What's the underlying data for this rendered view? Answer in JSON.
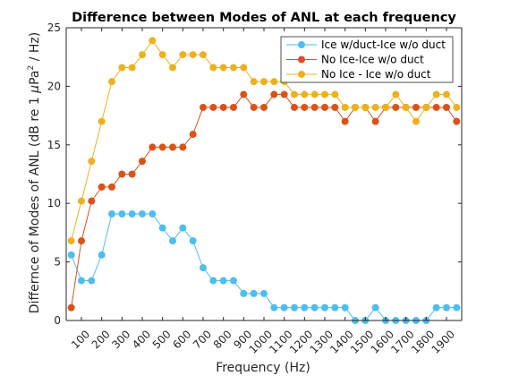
{
  "chart_data": {
    "type": "line",
    "title": "Difference between Modes of ANL at each frequency",
    "xlabel": "Frequency (Hz)",
    "ylabel_parts": [
      "Differnce of Modes of ANL (dB re 1 ",
      "μ",
      "Pa",
      "2",
      " / Hz)"
    ],
    "ylim": [
      0,
      25
    ],
    "xlim": [
      25,
      1975
    ],
    "y_ticks": [
      0,
      5,
      10,
      15,
      20,
      25
    ],
    "x_ticks": [
      100,
      200,
      300,
      400,
      500,
      600,
      700,
      800,
      900,
      1000,
      1100,
      1200,
      1300,
      1400,
      1500,
      1600,
      1700,
      1800,
      1900
    ],
    "grid": false,
    "legend_position": "top-right",
    "x": [
      50,
      100,
      150,
      200,
      250,
      300,
      350,
      400,
      450,
      500,
      550,
      600,
      650,
      700,
      750,
      800,
      850,
      900,
      950,
      1000,
      1050,
      1100,
      1150,
      1200,
      1250,
      1300,
      1350,
      1400,
      1450,
      1500,
      1550,
      1600,
      1650,
      1700,
      1750,
      1800,
      1850,
      1900,
      1950
    ],
    "series": [
      {
        "name": "Ice w/duct-Ice w/o duct",
        "color": "#4DBEEE",
        "values": [
          5.6,
          3.4,
          3.4,
          5.6,
          9.1,
          9.1,
          9.1,
          9.1,
          9.1,
          7.9,
          6.8,
          7.9,
          6.8,
          4.5,
          3.4,
          3.4,
          3.4,
          2.3,
          2.3,
          2.3,
          1.1,
          1.1,
          1.1,
          1.1,
          1.1,
          1.1,
          1.1,
          1.1,
          0,
          0,
          1.1,
          0,
          0,
          0,
          0,
          0,
          1.1,
          1.1,
          1.1
        ]
      },
      {
        "name": "No Ice-Ice w/o duct",
        "color": "#D95319",
        "values": [
          1.1,
          6.8,
          10.2,
          11.4,
          11.4,
          12.5,
          12.5,
          13.6,
          14.8,
          14.8,
          14.8,
          14.8,
          15.9,
          18.2,
          18.2,
          18.2,
          18.2,
          19.3,
          18.2,
          18.2,
          19.3,
          19.3,
          18.2,
          18.2,
          18.2,
          18.2,
          18.2,
          17.0,
          18.2,
          18.2,
          17.0,
          18.2,
          18.2,
          18.2,
          18.2,
          18.2,
          18.2,
          18.2,
          17.0
        ]
      },
      {
        "name": "No Ice - Ice w/o duct",
        "color": "#EDB120",
        "values": [
          6.8,
          10.2,
          13.6,
          17.0,
          20.4,
          21.6,
          21.6,
          22.7,
          23.9,
          22.7,
          21.6,
          22.7,
          22.7,
          22.7,
          21.6,
          21.6,
          21.6,
          21.6,
          20.4,
          20.4,
          20.4,
          20.4,
          19.3,
          19.3,
          19.3,
          19.3,
          19.3,
          18.2,
          18.2,
          18.2,
          18.2,
          18.2,
          19.3,
          18.2,
          17.0,
          18.2,
          19.3,
          19.3,
          18.2
        ]
      }
    ]
  }
}
